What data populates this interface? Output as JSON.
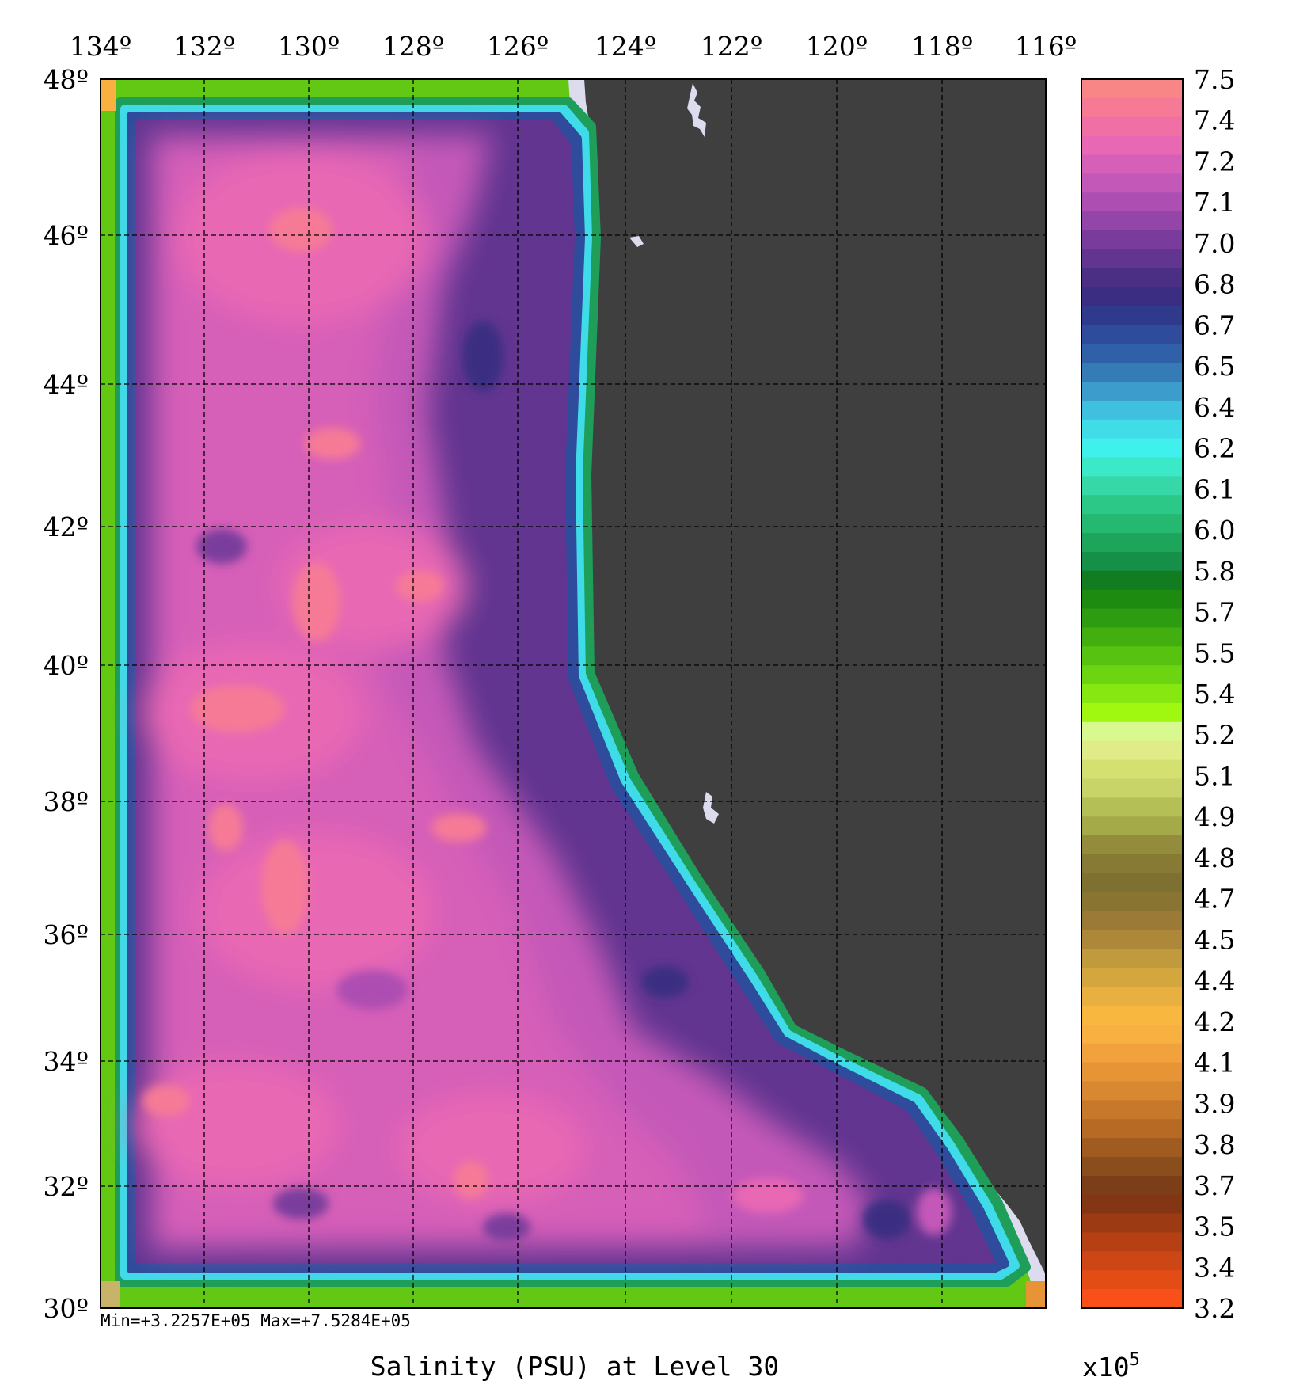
{
  "map": {
    "title": "Salinity (PSU) at Level 30",
    "stats": "Min=+3.2257E+05   Max=+7.5284E+05",
    "lon_labels": [
      "134º",
      "132º",
      "130º",
      "128º",
      "126º",
      "124º",
      "122º",
      "120º",
      "118º",
      "116º"
    ],
    "lat_labels": [
      "48º",
      "46º",
      "44º",
      "42º",
      "40º",
      "38º",
      "36º",
      "34º",
      "32º",
      "30º"
    ],
    "land_color": "#3f3f3f",
    "coast_color": "#dcdcee",
    "grid": "dashed"
  },
  "colorbar": {
    "labels": [
      "7.5",
      "7.4",
      "7.2",
      "7.1",
      "7.0",
      "6.8",
      "6.7",
      "6.5",
      "6.4",
      "6.2",
      "6.1",
      "6.0",
      "5.8",
      "5.7",
      "5.5",
      "5.4",
      "5.2",
      "5.1",
      "4.9",
      "4.8",
      "4.7",
      "4.5",
      "4.4",
      "4.2",
      "4.1",
      "3.9",
      "3.8",
      "3.7",
      "3.5",
      "3.4",
      "3.2"
    ],
    "multiplier_base": "x10",
    "multiplier_exp": "5",
    "colors": [
      "#f98686",
      "#f67a96",
      "#f070a6",
      "#e868b4",
      "#d65fb8",
      "#c458b8",
      "#ad4eb2",
      "#9445a8",
      "#7a3c9c",
      "#623590",
      "#4b2f84",
      "#3b2e82",
      "#2f3a8c",
      "#2e4c9b",
      "#3060a8",
      "#357cb6",
      "#3c9ccb",
      "#3fc0de",
      "#40dde9",
      "#40f0ec",
      "#3be8c8",
      "#35d8a6",
      "#2cc888",
      "#24b870",
      "#1ea55c",
      "#169048",
      "#117c20",
      "#1d8a10",
      "#2e9c10",
      "#42ae10",
      "#58c210",
      "#6cd410",
      "#86e810",
      "#a0f810",
      "#d8f890",
      "#e0ec88",
      "#d4e070",
      "#c8d468",
      "#b4c055",
      "#a4aa48",
      "#928c3c",
      "#867a34",
      "#7e7030",
      "#8a7432",
      "#9a7a36",
      "#ac8838",
      "#c09a3c",
      "#d4a63e",
      "#e8b040",
      "#f8b840",
      "#f8b040",
      "#f2a23c",
      "#e69436",
      "#d88830",
      "#c8782a",
      "#b66a24",
      "#a05c20",
      "#8a4e1c",
      "#7c3e18",
      "#843614",
      "#9c3a14",
      "#b64014",
      "#cc4616",
      "#e44c16",
      "#f85018"
    ]
  }
}
